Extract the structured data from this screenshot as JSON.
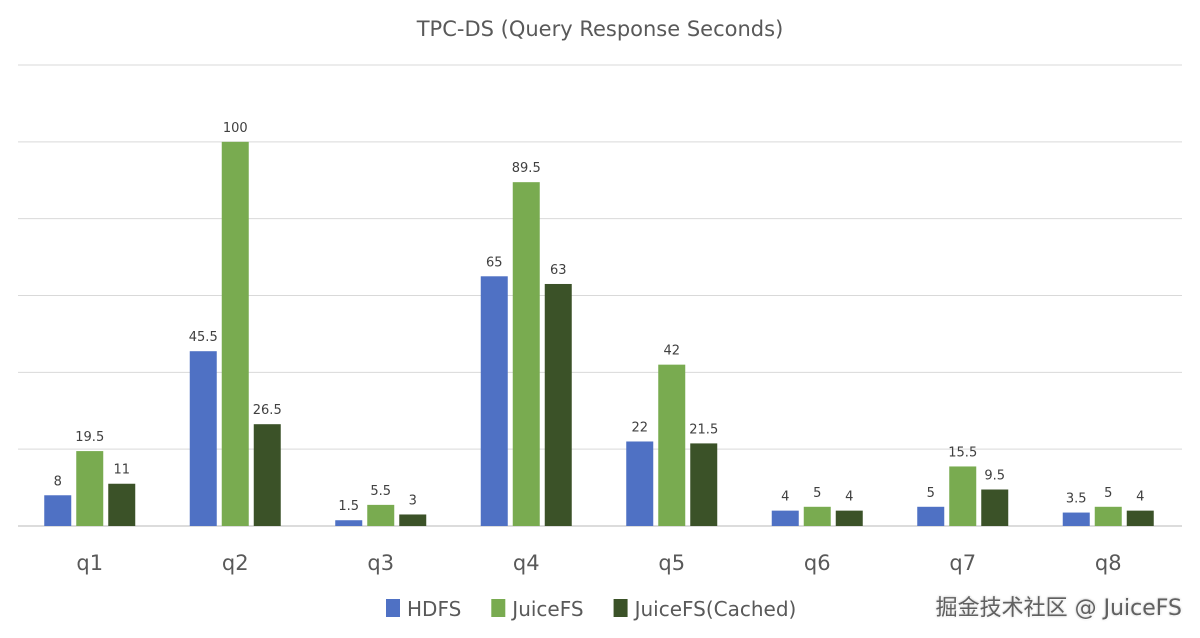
{
  "chart_data": {
    "type": "bar",
    "title": "TPC-DS (Query Response Seconds)",
    "categories": [
      "q1",
      "q2",
      "q3",
      "q4",
      "q5",
      "q6",
      "q7",
      "q8"
    ],
    "series": [
      {
        "name": "HDFS",
        "color": "#4f71c4",
        "values": [
          8,
          45.5,
          1.5,
          65,
          22,
          4,
          5,
          3.5
        ]
      },
      {
        "name": "JuiceFS",
        "color": "#79ab50",
        "values": [
          19.5,
          100,
          5.5,
          89.5,
          42,
          5,
          15.5,
          5
        ]
      },
      {
        "name": "JuiceFS(Cached)",
        "color": "#3b5228",
        "values": [
          11,
          26.5,
          3,
          63,
          21.5,
          4,
          9.5,
          4
        ]
      }
    ],
    "data_labels": [
      [
        "8",
        "45.5",
        "1.5",
        "65",
        "22",
        "4",
        "5",
        "3.5"
      ],
      [
        "19.5",
        "100",
        "5.5",
        "89.5",
        "42",
        "5",
        "15.5",
        "5"
      ],
      [
        "11",
        "26.5",
        "3",
        "63",
        "21.5",
        "4",
        "9.5",
        "4"
      ]
    ],
    "ylim": [
      0,
      120
    ],
    "ytick_step": 20,
    "y_tick_labels_shown": false,
    "grid": true,
    "legend_position": "bottom",
    "xlabel": "",
    "ylabel": ""
  },
  "watermark": "掘金技术社区 @ JuiceFS"
}
